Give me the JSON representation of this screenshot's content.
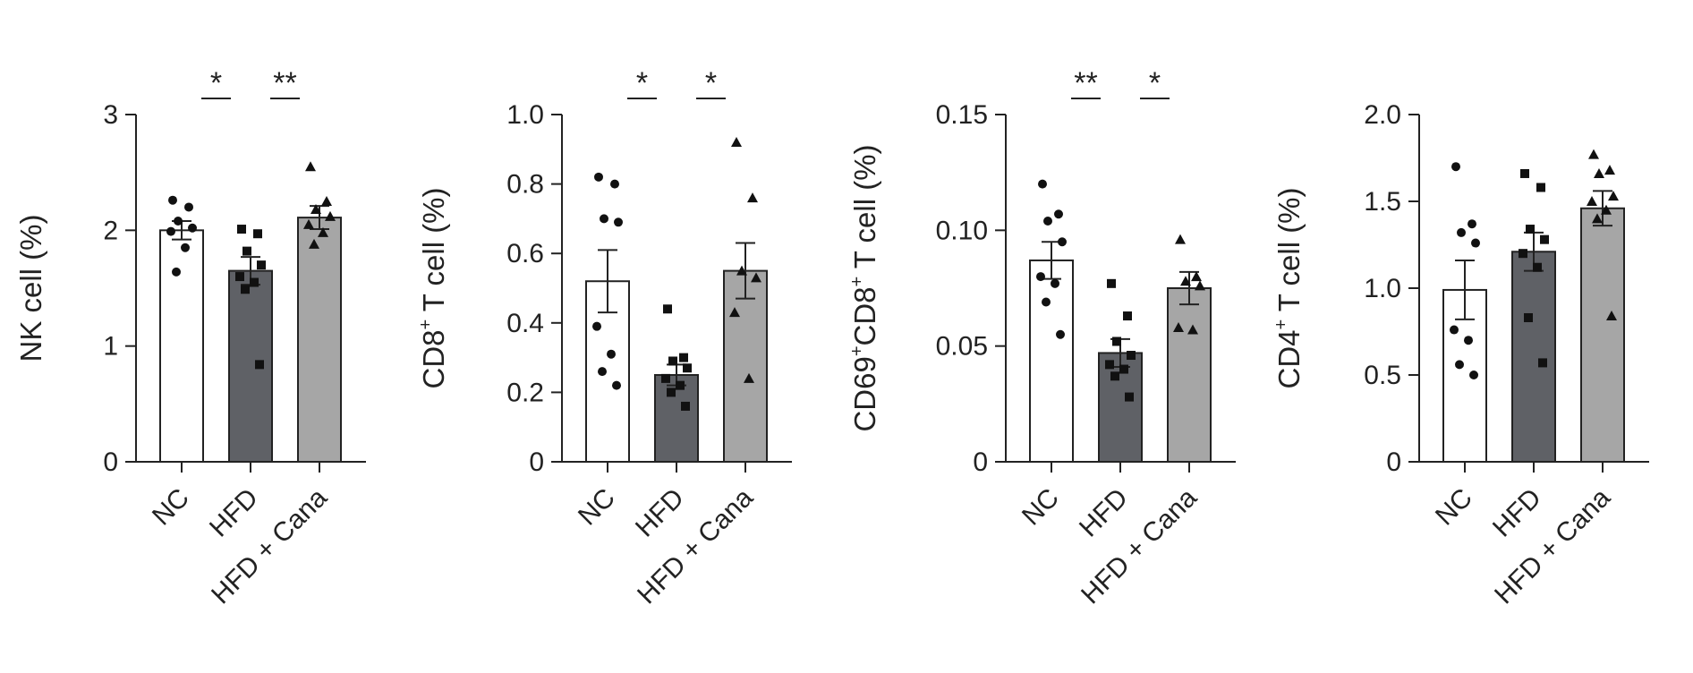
{
  "chart_data": [
    {
      "type": "bar",
      "ylabel": "NK cell (%)",
      "ylabel_parts": [
        {
          "text": "NK cell (%)",
          "sup": false
        }
      ],
      "ylim": [
        0,
        3
      ],
      "yticks": [
        0,
        1,
        2,
        3
      ],
      "ytick_labels": [
        "0",
        "1",
        "2",
        "3"
      ],
      "categories": [
        "NC",
        "HFD",
        "HFD + Cana"
      ],
      "bar_colors": [
        "#ffffff",
        "#5f6166",
        "#a6a6a6"
      ],
      "marker_shapes": [
        "circle",
        "square",
        "triangle"
      ],
      "values": [
        2.0,
        1.65,
        2.11
      ],
      "sem": [
        0.08,
        0.12,
        0.1
      ],
      "points": [
        [
          2.26,
          2.2,
          2.08,
          2.02,
          1.99,
          1.85,
          1.64
        ],
        [
          2.01,
          1.97,
          1.82,
          1.7,
          1.6,
          1.55,
          1.49,
          0.84
        ],
        [
          2.55,
          2.25,
          2.18,
          2.12,
          2.05,
          1.98,
          1.88
        ]
      ],
      "significance": [
        {
          "pair": [
            0,
            1
          ],
          "label": "*"
        },
        {
          "pair": [
            1,
            2
          ],
          "label": "**"
        }
      ]
    },
    {
      "type": "bar",
      "ylabel": "CD8+ T cell (%)",
      "ylabel_parts": [
        {
          "text": "CD8",
          "sup": false
        },
        {
          "text": "+",
          "sup": true
        },
        {
          "text": " T cell (%)",
          "sup": false
        }
      ],
      "ylim": [
        0,
        1.0
      ],
      "yticks": [
        0,
        0.2,
        0.4,
        0.6,
        0.8,
        1.0
      ],
      "ytick_labels": [
        "0",
        "0.2",
        "0.4",
        "0.6",
        "0.8",
        "1.0"
      ],
      "categories": [
        "NC",
        "HFD",
        "HFD + Cana"
      ],
      "bar_colors": [
        "#ffffff",
        "#5f6166",
        "#a6a6a6"
      ],
      "marker_shapes": [
        "circle",
        "square",
        "triangle"
      ],
      "values": [
        0.52,
        0.25,
        0.55
      ],
      "sem": [
        0.09,
        0.03,
        0.08
      ],
      "points": [
        [
          0.82,
          0.8,
          0.7,
          0.69,
          0.39,
          0.31,
          0.26,
          0.22
        ],
        [
          0.44,
          0.3,
          0.29,
          0.27,
          0.24,
          0.22,
          0.2,
          0.16
        ],
        [
          0.92,
          0.76,
          0.55,
          0.53,
          0.43,
          0.24
        ]
      ],
      "significance": [
        {
          "pair": [
            0,
            1
          ],
          "label": "*"
        },
        {
          "pair": [
            1,
            2
          ],
          "label": "*"
        }
      ]
    },
    {
      "type": "bar",
      "ylabel": "CD69+CD8+ T cell (%)",
      "ylabel_parts": [
        {
          "text": "CD69",
          "sup": false
        },
        {
          "text": "+",
          "sup": true
        },
        {
          "text": "CD8",
          "sup": false
        },
        {
          "text": "+",
          "sup": true
        },
        {
          "text": " T cell (%)",
          "sup": false
        }
      ],
      "ylim": [
        0,
        0.15
      ],
      "yticks": [
        0,
        0.05,
        0.1,
        0.15
      ],
      "ytick_labels": [
        "0",
        "0.05",
        "0.10",
        "0.15"
      ],
      "categories": [
        "NC",
        "HFD",
        "HFD + Cana"
      ],
      "bar_colors": [
        "#ffffff",
        "#5f6166",
        "#a6a6a6"
      ],
      "marker_shapes": [
        "circle",
        "square",
        "triangle"
      ],
      "values": [
        0.087,
        0.047,
        0.075
      ],
      "sem": [
        0.008,
        0.006,
        0.007
      ],
      "points": [
        [
          0.12,
          0.107,
          0.104,
          0.095,
          0.08,
          0.077,
          0.069,
          0.055
        ],
        [
          0.077,
          0.063,
          0.052,
          0.046,
          0.042,
          0.04,
          0.037,
          0.028
        ],
        [
          0.096,
          0.08,
          0.078,
          0.076,
          0.058,
          0.057
        ]
      ],
      "significance": [
        {
          "pair": [
            0,
            1
          ],
          "label": "**"
        },
        {
          "pair": [
            1,
            2
          ],
          "label": "*"
        }
      ]
    },
    {
      "type": "bar",
      "ylabel": "CD4+ T cell (%)",
      "ylabel_parts": [
        {
          "text": "CD4",
          "sup": false
        },
        {
          "text": "+",
          "sup": true
        },
        {
          "text": " T cell (%)",
          "sup": false
        }
      ],
      "ylim": [
        0,
        2.0
      ],
      "yticks": [
        0,
        0.5,
        1.0,
        1.5,
        2.0
      ],
      "ytick_labels": [
        "0",
        "0.5",
        "1.0",
        "1.5",
        "2.0"
      ],
      "categories": [
        "NC",
        "HFD",
        "HFD + Cana"
      ],
      "bar_colors": [
        "#ffffff",
        "#5f6166",
        "#a6a6a6"
      ],
      "marker_shapes": [
        "circle",
        "square",
        "triangle"
      ],
      "values": [
        0.99,
        1.21,
        1.46
      ],
      "sem": [
        0.17,
        0.11,
        0.1
      ],
      "points": [
        [
          1.7,
          1.37,
          1.32,
          1.26,
          0.76,
          0.7,
          0.56,
          0.5
        ],
        [
          1.66,
          1.58,
          1.34,
          1.28,
          1.2,
          1.12,
          0.83,
          0.57
        ],
        [
          1.77,
          1.68,
          1.66,
          1.53,
          1.5,
          1.45,
          1.4,
          0.84
        ]
      ],
      "significance": []
    }
  ]
}
